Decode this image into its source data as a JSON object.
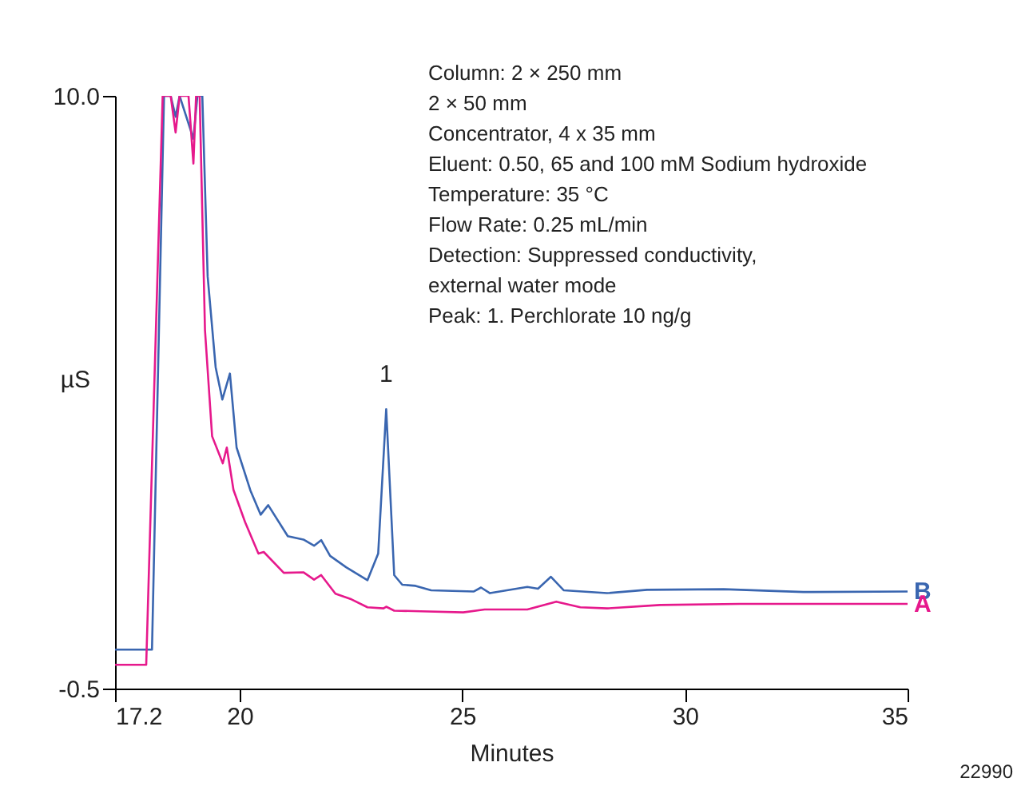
{
  "chart_data": {
    "type": "line",
    "xlabel": "Minutes",
    "ylabel": "µS",
    "xlim": [
      17.2,
      35
    ],
    "xticks": [
      17.2,
      20,
      25,
      30,
      35
    ],
    "ylim": [
      -0.5,
      10
    ],
    "yticks": [
      {
        "value": 10,
        "label": "10.0"
      },
      -0.5
    ],
    "grid": false,
    "legend": false,
    "marker": "none",
    "line_style": "solid",
    "series": [
      {
        "name": "B",
        "color": "#3a66b0",
        "x": [
          17.2,
          18.03,
          18.3,
          18.45,
          18.56,
          18.65,
          18.96,
          19.05,
          19.16,
          19.28,
          19.46,
          19.61,
          19.78,
          19.93,
          20.24,
          20.47,
          20.64,
          21.08,
          21.43,
          21.67,
          21.83,
          22.03,
          22.39,
          22.87,
          23.11,
          23.29,
          23.47,
          23.65,
          23.95,
          24.3,
          25.26,
          25.42,
          25.62,
          26.46,
          26.7,
          26.99,
          27.28,
          28.25,
          29.15,
          30.87,
          32.66,
          35
        ],
        "values": [
          0.19,
          0.19,
          10,
          10,
          9.63,
          10,
          9.24,
          10,
          10,
          6.8,
          5.19,
          4.62,
          5.08,
          3.77,
          3.01,
          2.58,
          2.75,
          2.2,
          2.14,
          2.03,
          2.13,
          1.85,
          1.65,
          1.42,
          1.89,
          4.45,
          1.51,
          1.34,
          1.32,
          1.24,
          1.22,
          1.29,
          1.19,
          1.3,
          1.27,
          1.48,
          1.24,
          1.19,
          1.25,
          1.26,
          1.21,
          1.22
        ]
      },
      {
        "name": "A",
        "color": "#e6198c",
        "x": [
          17.2,
          17.9,
          18.27,
          18.45,
          18.56,
          18.65,
          18.85,
          18.96,
          19.02,
          19.1,
          19.22,
          19.38,
          19.62,
          19.71,
          19.86,
          20.12,
          20.42,
          20.54,
          20.99,
          21.43,
          21.67,
          21.83,
          22.15,
          22.51,
          22.87,
          23.23,
          23.29,
          23.47,
          24.06,
          25.02,
          25.5,
          26.46,
          27.11,
          27.65,
          28.25,
          29.44,
          31.23,
          35
        ],
        "values": [
          -0.08,
          -0.08,
          10,
          10,
          9.35,
          10,
          10,
          8.8,
          10,
          10,
          5.85,
          3.97,
          3.49,
          3.77,
          3.02,
          2.45,
          1.89,
          1.92,
          1.55,
          1.56,
          1.43,
          1.51,
          1.18,
          1.08,
          0.94,
          0.92,
          0.95,
          0.88,
          0.87,
          0.85,
          0.9,
          0.9,
          1.04,
          0.94,
          0.92,
          0.98,
          1.0,
          1.0
        ]
      }
    ],
    "annotations": [
      {
        "text": "1",
        "x": 23.29,
        "y": 4.45
      },
      "Column: 2 × 250 mm",
      "2 × 50 mm",
      "Concentrator, 4 x 35 mm",
      "Eluent: 0.50, 65 and 100 mM Sodium hydroxide",
      "Temperature: 35 °C",
      "Flow Rate: 0.25 mL/min",
      "Detection: Suppressed conductivity,",
      "external water mode",
      "Peak: 1. Perchlorate 10 ng/g",
      "22990"
    ]
  }
}
